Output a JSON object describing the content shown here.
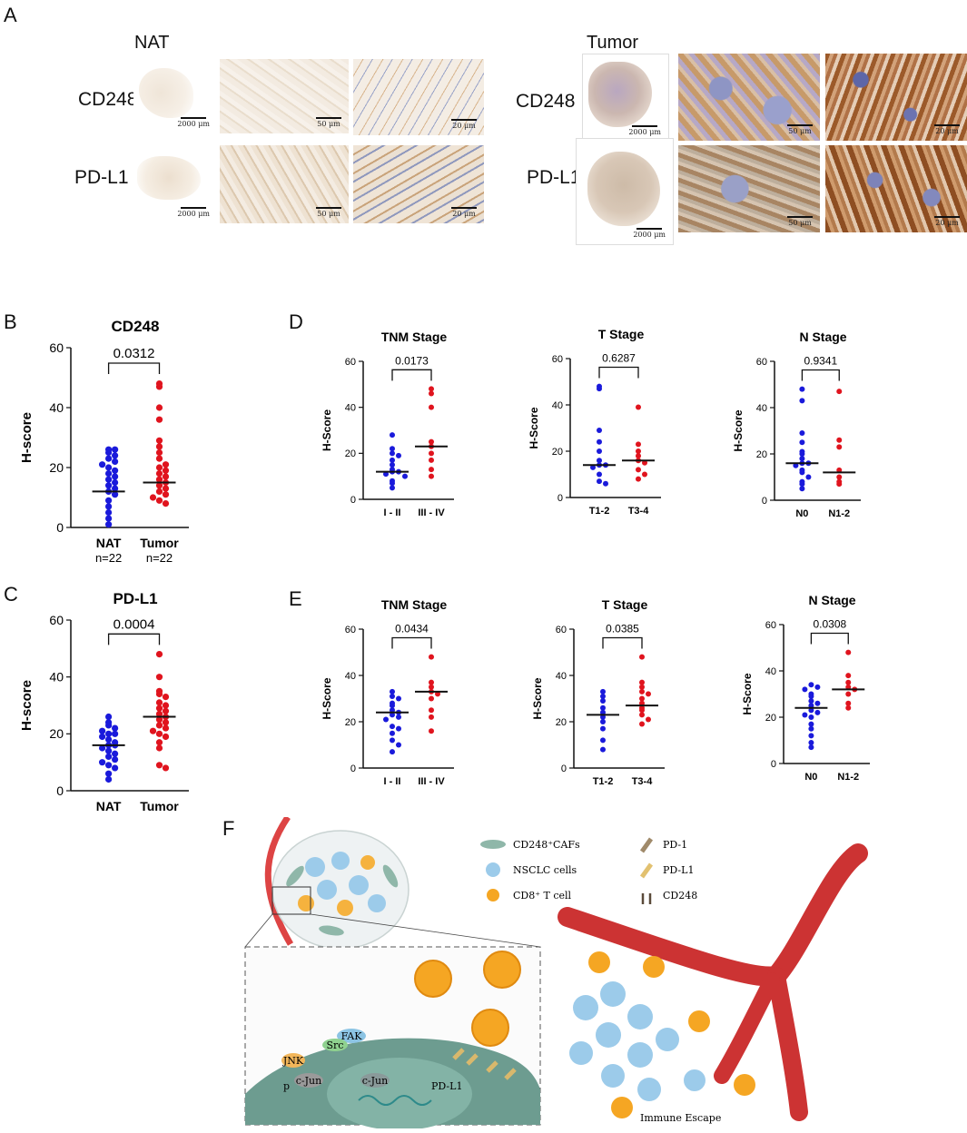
{
  "panel_letters": {
    "A": "A",
    "B": "B",
    "C": "C",
    "D": "D",
    "E": "E",
    "F": "F"
  },
  "panel_a": {
    "group_nat": "NAT",
    "group_tumor": "Tumor",
    "row1": "CD248",
    "row2": "PD-L1",
    "scale_labels": [
      "2000 μm",
      "50 μm",
      "20 μm"
    ]
  },
  "chart_data": [
    {
      "id": "B",
      "type": "scatter",
      "title": "CD248",
      "ylabel": "H-score",
      "ylim": [
        0,
        60
      ],
      "yticks": [
        0,
        20,
        40,
        60
      ],
      "categories": [
        "NAT",
        "Tumor"
      ],
      "sublabels": [
        "n=22",
        "n=22"
      ],
      "pvalue": "0.0312",
      "series": [
        {
          "color": "#1a1adb",
          "median": 12,
          "values": [
            26,
            26,
            25,
            24,
            23,
            22,
            21,
            20,
            19,
            18,
            17,
            16,
            15,
            14,
            13,
            12,
            11,
            9,
            7,
            5,
            3,
            1
          ]
        },
        {
          "color": "#e0141e",
          "median": 15,
          "values": [
            48,
            47,
            40,
            36,
            29,
            27,
            25,
            23,
            21,
            20,
            19,
            18,
            17,
            16,
            15,
            14,
            13,
            12,
            11,
            10,
            9,
            8
          ]
        }
      ]
    },
    {
      "id": "C",
      "type": "scatter",
      "title": "PD-L1",
      "ylabel": "H-score",
      "ylim": [
        0,
        60
      ],
      "yticks": [
        0,
        20,
        40,
        60
      ],
      "categories": [
        "NAT",
        "Tumor"
      ],
      "sublabels": [
        "n=22",
        "n=22"
      ],
      "pvalue": "0.0004",
      "series": [
        {
          "color": "#1a1adb",
          "median": 16,
          "values": [
            26,
            24,
            23,
            22,
            21,
            20,
            20,
            19,
            18,
            17,
            16,
            16,
            15,
            14,
            13,
            12,
            11,
            10,
            9,
            8,
            6,
            4
          ]
        },
        {
          "color": "#e0141e",
          "median": 26,
          "values": [
            48,
            40,
            35,
            34,
            33,
            31,
            30,
            29,
            28,
            27,
            26,
            25,
            24,
            23,
            22,
            21,
            20,
            19,
            17,
            15,
            9,
            8
          ]
        }
      ]
    },
    {
      "id": "D1",
      "type": "scatter",
      "title": "TNM Stage",
      "ylabel": "H-Score",
      "ylim": [
        0,
        60
      ],
      "yticks": [
        0,
        20,
        40,
        60
      ],
      "categories": [
        "I - II",
        "III - IV"
      ],
      "pvalue": "0.0173",
      "series": [
        {
          "color": "#1a1adb",
          "median": 12,
          "values": [
            28,
            22,
            20,
            19,
            17,
            15,
            13,
            12,
            12,
            11,
            10,
            8,
            7,
            5
          ]
        },
        {
          "color": "#e0141e",
          "median": 23,
          "values": [
            48,
            46,
            40,
            25,
            23,
            20,
            17,
            13,
            10
          ]
        }
      ]
    },
    {
      "id": "D2",
      "type": "scatter",
      "title": "T Stage",
      "ylabel": "H-Score",
      "ylim": [
        0,
        60
      ],
      "yticks": [
        0,
        20,
        40,
        60
      ],
      "categories": [
        "T1-2",
        "T3-4"
      ],
      "pvalue": "0.6287",
      "series": [
        {
          "color": "#1a1adb",
          "median": 14,
          "values": [
            48,
            47,
            29,
            24,
            20,
            16,
            14,
            14,
            13,
            10,
            7,
            6
          ]
        },
        {
          "color": "#e0141e",
          "median": 16,
          "values": [
            39,
            23,
            20,
            18,
            16,
            15,
            12,
            10,
            8
          ]
        }
      ]
    },
    {
      "id": "D3",
      "type": "scatter",
      "title": "N Stage",
      "ylabel": "H-Score",
      "ylim": [
        0,
        60
      ],
      "yticks": [
        0,
        20,
        40,
        60
      ],
      "categories": [
        "N0",
        "N1-2"
      ],
      "pvalue": "0.9341",
      "series": [
        {
          "color": "#1a1adb",
          "median": 16,
          "values": [
            48,
            43,
            29,
            25,
            21,
            20,
            18,
            16,
            16,
            15,
            13,
            12,
            10,
            8,
            7,
            5
          ]
        },
        {
          "color": "#e0141e",
          "median": 12,
          "values": [
            47,
            26,
            23,
            13,
            10,
            8,
            7
          ]
        }
      ]
    },
    {
      "id": "E1",
      "type": "scatter",
      "title": "TNM Stage",
      "ylabel": "H-Score",
      "ylim": [
        0,
        60
      ],
      "yticks": [
        0,
        20,
        40,
        60
      ],
      "categories": [
        "I - II",
        "III - IV"
      ],
      "pvalue": "0.0434",
      "series": [
        {
          "color": "#1a1adb",
          "median": 24,
          "values": [
            33,
            31,
            30,
            28,
            27,
            25,
            24,
            23,
            22,
            21,
            18,
            17,
            15,
            12,
            10,
            7
          ]
        },
        {
          "color": "#e0141e",
          "median": 33,
          "values": [
            48,
            37,
            35,
            33,
            32,
            30,
            25,
            22,
            16
          ]
        }
      ]
    },
    {
      "id": "E2",
      "type": "scatter",
      "title": "T Stage",
      "ylabel": "H-Score",
      "ylim": [
        0,
        60
      ],
      "yticks": [
        0,
        20,
        40,
        60
      ],
      "categories": [
        "T1-2",
        "T3-4"
      ],
      "pvalue": "0.0385",
      "series": [
        {
          "color": "#1a1adb",
          "median": 23,
          "values": [
            33,
            31,
            29,
            26,
            24,
            22,
            20,
            17,
            12,
            8
          ]
        },
        {
          "color": "#e0141e",
          "median": 27,
          "values": [
            48,
            37,
            35,
            33,
            32,
            30,
            28,
            26,
            25,
            23,
            21,
            19
          ]
        }
      ]
    },
    {
      "id": "E3",
      "type": "scatter",
      "title": "N Stage",
      "ylabel": "H-Score",
      "ylim": [
        0,
        60
      ],
      "yticks": [
        0,
        20,
        40,
        60
      ],
      "categories": [
        "N0",
        "N1-2"
      ],
      "pvalue": "0.0308",
      "series": [
        {
          "color": "#1a1adb",
          "median": 24,
          "values": [
            34,
            33,
            32,
            30,
            29,
            27,
            26,
            25,
            23,
            22,
            21,
            20,
            17,
            15,
            12,
            9,
            7
          ]
        },
        {
          "color": "#e0141e",
          "median": 32,
          "values": [
            48,
            38,
            35,
            33,
            32,
            30,
            26,
            24
          ]
        }
      ]
    }
  ],
  "panel_f": {
    "legend": [
      "CD248⁺CAFs",
      "NSCLC cells",
      "CD8⁺ T cell",
      "PD-1",
      "PD-L1",
      "CD248"
    ],
    "labels": {
      "fak": "FAK",
      "src": "Src",
      "jnk": "JNK",
      "p": "p",
      "cjun": "c-Jun",
      "cjun2": "c-Jun",
      "pdl1": "PD-L1",
      "escape": "Immune Escape"
    }
  },
  "colors": {
    "blue": "#1a1adb",
    "red": "#e0141e"
  }
}
